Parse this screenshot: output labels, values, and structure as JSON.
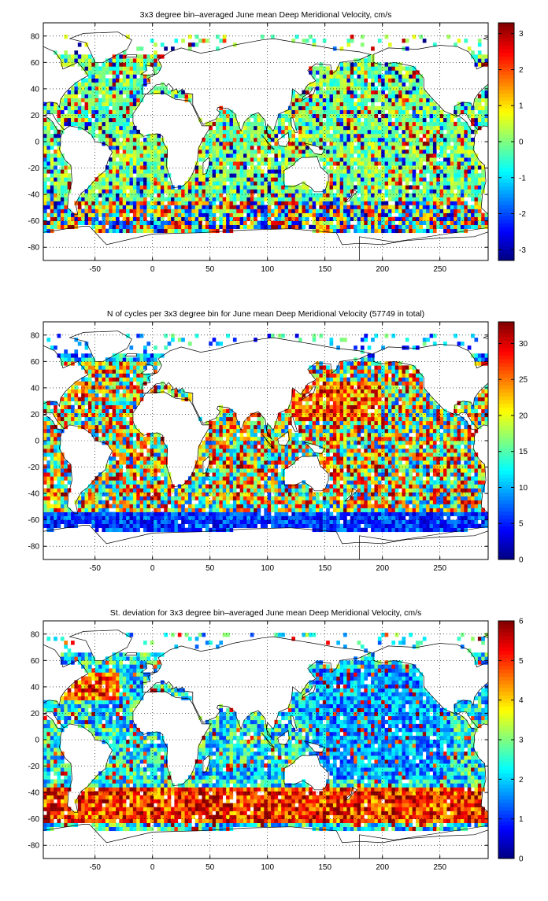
{
  "colors": {
    "land": "#ffffff",
    "frame": "#000000",
    "grid": "#000000"
  },
  "chart_data": [
    {
      "type": "heatmap",
      "title": "3x3 degree bin–averaged June mean Deep Meridional Velocity, cm/s",
      "xlabel": "",
      "ylabel": "",
      "xlim": [
        -95,
        292
      ],
      "ylim": [
        -90,
        90
      ],
      "xticks": [
        -50,
        0,
        50,
        100,
        150,
        200,
        250
      ],
      "yticks": [
        80,
        60,
        40,
        20,
        0,
        -20,
        -40,
        -60,
        -80
      ],
      "grid": true,
      "colorbar": {
        "min": -3.3,
        "max": 3.3,
        "ticks": [
          3,
          2,
          1,
          0,
          -1,
          -2,
          -3
        ],
        "colormap": "jet"
      },
      "bin_size_deg": 3,
      "field": "meridional_velocity"
    },
    {
      "type": "heatmap",
      "title": "N of cycles per 3x3 degree bin for June mean Deep Meridional Velocity (57749 in total)",
      "xlabel": "",
      "ylabel": "",
      "xlim": [
        -95,
        292
      ],
      "ylim": [
        -90,
        90
      ],
      "xticks": [
        -50,
        0,
        50,
        100,
        150,
        200,
        250
      ],
      "yticks": [
        80,
        60,
        40,
        20,
        0,
        -20,
        -40,
        -60,
        -80
      ],
      "grid": true,
      "colorbar": {
        "min": 0,
        "max": 33,
        "ticks": [
          30,
          25,
          20,
          15,
          10,
          5,
          0
        ],
        "colormap": "jet"
      },
      "bin_size_deg": 3,
      "field": "cycle_count"
    },
    {
      "type": "heatmap",
      "title": "St. deviation for 3x3 degree bin–averaged June mean Deep Meridional Velocity, cm/s",
      "xlabel": "",
      "ylabel": "",
      "xlim": [
        -95,
        292
      ],
      "ylim": [
        -90,
        90
      ],
      "xticks": [
        -50,
        0,
        50,
        100,
        150,
        200,
        250
      ],
      "yticks": [
        80,
        60,
        40,
        20,
        0,
        -20,
        -40,
        -60,
        -80
      ],
      "grid": true,
      "colorbar": {
        "min": 0,
        "max": 6,
        "ticks": [
          6,
          5,
          4,
          3,
          2,
          1,
          0
        ],
        "colormap": "jet"
      },
      "bin_size_deg": 3,
      "field": "std_deviation"
    }
  ]
}
